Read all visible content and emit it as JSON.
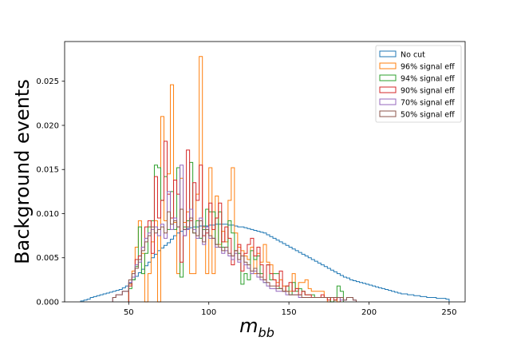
{
  "chart_data": {
    "type": "histogram-step",
    "xlabel": "m",
    "xlabel_sub": "bb",
    "ylabel": "Background events",
    "xlim": [
      10,
      260
    ],
    "ylim": [
      0,
      0.0295
    ],
    "x_ticks": [
      50,
      100,
      150,
      200,
      250
    ],
    "y_ticks": [
      0.0,
      0.005,
      0.01,
      0.015,
      0.02,
      0.025
    ],
    "y_tick_labels": [
      "0.000",
      "0.005",
      "0.010",
      "0.015",
      "0.020",
      "0.025"
    ],
    "bin_width": 2,
    "grid": false,
    "legend_position": "top-right",
    "series": [
      {
        "name": "No cut",
        "color": "#1f77b4",
        "x_start": 20,
        "values": [
          0.0001,
          0.0002,
          0.0003,
          0.0005,
          0.0006,
          0.0007,
          0.0008,
          0.0009,
          0.001,
          0.0011,
          0.0012,
          0.0013,
          0.0014,
          0.0016,
          0.0018,
          0.0021,
          0.0025,
          0.0029,
          0.0033,
          0.0037,
          0.0041,
          0.0045,
          0.005,
          0.0054,
          0.0058,
          0.0061,
          0.0064,
          0.0067,
          0.0071,
          0.0075,
          0.0078,
          0.008,
          0.0082,
          0.0083,
          0.0084,
          0.0085,
          0.0085,
          0.0086,
          0.0086,
          0.0086,
          0.0087,
          0.0087,
          0.0088,
          0.0088,
          0.0088,
          0.0088,
          0.0087,
          0.0087,
          0.0086,
          0.0085,
          0.0085,
          0.0084,
          0.0083,
          0.0082,
          0.0081,
          0.008,
          0.0079,
          0.0078,
          0.0076,
          0.0074,
          0.0072,
          0.007,
          0.0068,
          0.0066,
          0.0064,
          0.0062,
          0.006,
          0.0058,
          0.0056,
          0.0054,
          0.0052,
          0.005,
          0.0048,
          0.0046,
          0.0044,
          0.0042,
          0.004,
          0.0038,
          0.0036,
          0.0034,
          0.0032,
          0.003,
          0.0028,
          0.0027,
          0.0025,
          0.0024,
          0.0023,
          0.0022,
          0.0021,
          0.002,
          0.0019,
          0.0018,
          0.0017,
          0.0016,
          0.0015,
          0.0014,
          0.0013,
          0.0012,
          0.0011,
          0.001,
          0.0009,
          0.0009,
          0.0008,
          0.0008,
          0.0007,
          0.0007,
          0.0006,
          0.0006,
          0.0005,
          0.0005,
          0.0005,
          0.0004,
          0.0004,
          0.0004,
          0.0003
        ]
      },
      {
        "name": "96% signal eff",
        "color": "#ff7f0e",
        "x_start": 50,
        "values": [
          0.002,
          0.0035,
          0.0062,
          0.0092,
          0.0055,
          0.0,
          0.0032,
          0.0068,
          0.0092,
          0.0,
          0.021,
          0.0092,
          0.0145,
          0.0246,
          0.009,
          0.0032,
          0.014,
          0.009,
          0.0102,
          0.0032,
          0.0032,
          0.0122,
          0.0278,
          0.0085,
          0.0032,
          0.0152,
          0.0032,
          0.012,
          0.0065,
          0.008,
          0.0068,
          0.0115,
          0.0152,
          0.0078,
          0.0062,
          0.0058,
          0.0052,
          0.0048,
          0.0062,
          0.0032,
          0.0055,
          0.0045,
          0.0065,
          0.0045,
          0.0042,
          0.0025,
          0.0022,
          0.0025,
          0.0018,
          0.0012,
          0.0012,
          0.0032,
          0.0015,
          0.0022,
          0.0022,
          0.0025,
          0.0015,
          0.0012,
          0.0012,
          0.0012,
          0.0012,
          0.0005,
          0.0,
          0.0005,
          0.0005,
          0.0
        ]
      },
      {
        "name": "94% signal eff",
        "color": "#2ca02c",
        "x_start": 50,
        "values": [
          0.0015,
          0.0025,
          0.004,
          0.0085,
          0.0032,
          0.0055,
          0.0085,
          0.0092,
          0.0155,
          0.0152,
          0.0115,
          0.0142,
          0.0082,
          0.0125,
          0.0082,
          0.0152,
          0.0028,
          0.0085,
          0.0092,
          0.0158,
          0.0078,
          0.0092,
          0.0072,
          0.0082,
          0.0105,
          0.0102,
          0.0102,
          0.0065,
          0.0102,
          0.0062,
          0.0062,
          0.0092,
          0.0078,
          0.0058,
          0.0055,
          0.002,
          0.0032,
          0.0025,
          0.0058,
          0.0048,
          0.0052,
          0.0032,
          0.0022,
          0.0042,
          0.0025,
          0.0032,
          0.0032,
          0.0015,
          0.0012,
          0.0018,
          0.0008,
          0.0022,
          0.0012,
          0.0015,
          0.0012,
          0.0008,
          0.0008,
          0.0008,
          0.0005,
          0.0005,
          0.0005,
          0.0005,
          0.0005,
          0.0,
          0.0002,
          0.0018,
          0.0012
        ]
      },
      {
        "name": "90% signal eff",
        "color": "#d62728",
        "x_start": 50,
        "values": [
          0.0018,
          0.0028,
          0.0048,
          0.0052,
          0.0062,
          0.0085,
          0.0092,
          0.0055,
          0.0142,
          0.0095,
          0.0115,
          0.0182,
          0.0122,
          0.0095,
          0.0138,
          0.0122,
          0.0045,
          0.0075,
          0.0172,
          0.0092,
          0.0135,
          0.0115,
          0.0155,
          0.0075,
          0.0078,
          0.0112,
          0.0082,
          0.0095,
          0.0112,
          0.0068,
          0.0085,
          0.0072,
          0.0042,
          0.0058,
          0.0065,
          0.0035,
          0.0055,
          0.0065,
          0.0072,
          0.0052,
          0.0062,
          0.0042,
          0.0025,
          0.0042,
          0.0032,
          0.0025,
          0.0018,
          0.0035,
          0.0012,
          0.0018,
          0.0022,
          0.0012,
          0.0015,
          0.0008,
          0.0012,
          0.0008,
          0.0008,
          0.0005,
          0.0005,
          0.0005,
          0.0008,
          0.0005,
          0.0002,
          0.0005,
          0.0002,
          0.0005
        ]
      },
      {
        "name": "70% signal eff",
        "color": "#9467bd",
        "x_start": 40,
        "values": [
          0.0005,
          0.0008,
          0.0008,
          0.0012,
          0.0012,
          0.0022,
          0.0028,
          0.0042,
          0.0045,
          0.0062,
          0.0072,
          0.0078,
          0.0082,
          0.0085,
          0.0075,
          0.0088,
          0.0072,
          0.0125,
          0.0082,
          0.0095,
          0.0085,
          0.0155,
          0.0075,
          0.0082,
          0.0105,
          0.0082,
          0.0072,
          0.0095,
          0.0065,
          0.0085,
          0.0072,
          0.0072,
          0.0062,
          0.0062,
          0.0055,
          0.0058,
          0.0052,
          0.0048,
          0.0055,
          0.0045,
          0.0052,
          0.0042,
          0.0038,
          0.0032,
          0.0035,
          0.0028,
          0.0025,
          0.0022,
          0.0018,
          0.0015,
          0.0015,
          0.0012,
          0.0012,
          0.0012,
          0.0008,
          0.0008,
          0.0008,
          0.0008,
          0.0005,
          0.0005,
          0.0005,
          0.0005,
          0.0005,
          0.0005,
          0.0005,
          0.0005,
          0.0005,
          0.0005,
          0.0005,
          0.0005,
          0.0005,
          0.0002,
          0.0002,
          0.0005,
          0.0005,
          0.0002
        ]
      },
      {
        "name": "50% signal eff",
        "color": "#8c564b",
        "x_start": 40,
        "values": [
          0.0005,
          0.0008,
          0.0008,
          0.0012,
          0.0012,
          0.0025,
          0.0032,
          0.0038,
          0.0048,
          0.0058,
          0.0068,
          0.0075,
          0.0085,
          0.0078,
          0.0082,
          0.0085,
          0.0078,
          0.0102,
          0.0088,
          0.0092,
          0.0085,
          0.0105,
          0.0082,
          0.0085,
          0.0095,
          0.0078,
          0.0075,
          0.0092,
          0.0068,
          0.0082,
          0.0075,
          0.0072,
          0.0065,
          0.0062,
          0.0058,
          0.0062,
          0.0055,
          0.0052,
          0.0058,
          0.0048,
          0.0052,
          0.0045,
          0.0042,
          0.0035,
          0.0038,
          0.0032,
          0.0028,
          0.0025,
          0.0022,
          0.0018,
          0.0018,
          0.0015,
          0.0015,
          0.0012,
          0.0012,
          0.0008,
          0.0008,
          0.0008,
          0.0008,
          0.0005,
          0.0005,
          0.0005,
          0.0005,
          0.0005,
          0.0005,
          0.0005,
          0.0005,
          0.0005,
          0.0005,
          0.0005,
          0.0005,
          0.0005,
          0.0002,
          0.0005,
          0.0005,
          0.0002
        ]
      }
    ]
  }
}
